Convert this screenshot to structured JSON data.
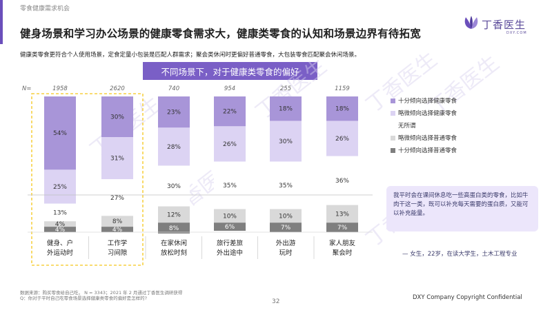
{
  "header": {
    "section_label": "零食健康需求机会",
    "title": "健身场景和学习办公场景的健康零食需求大，健康类零食的认知和场景边界有待拓宽",
    "subtitle": "健康类零食更符合个人使用场景，定食定量小包装是匹配人群需求；聚会类休闲时更偏好普通零食，大包装零食匹配聚会休闲场景。"
  },
  "logo": {
    "text": "丁香医生",
    "sub": "DXY.COM"
  },
  "watermark_text": "丁香医生",
  "colors": {
    "accent": "#6b4fbb",
    "header_bg": "#7a5fc6",
    "highlight_border": "#f5c518",
    "quote_bg": "#ece6fb"
  },
  "chart_data": {
    "type": "bar",
    "stacked": "percent",
    "title": "不同场景下，对于健康类零食的偏好",
    "n_label": "N=",
    "n_values": [
      "1958",
      "2620",
      "740",
      "954",
      "255",
      "1159"
    ],
    "categories": [
      "健身、户外运动时",
      "工作学习间隙",
      "在家休闲放松时刻",
      "旅行差旅外出途中",
      "外出游玩时",
      "家人朋友聚会时"
    ],
    "highlighted": [
      0,
      1
    ],
    "series": [
      {
        "name": "十分倾向选择健康零食",
        "color": "#a895d8",
        "values": [
          54,
          30,
          23,
          22,
          18,
          18
        ]
      },
      {
        "name": "略微倾向选择健康零食",
        "color": "#dcd3f3",
        "values": [
          25,
          31,
          28,
          26,
          30,
          26
        ]
      },
      {
        "name": "无所谓",
        "color": "#ffffff",
        "values": [
          13,
          27,
          30,
          35,
          35,
          36
        ]
      },
      {
        "name": "略微倾向选择普通零食",
        "color": "#d9d9d9",
        "values": [
          4,
          8,
          12,
          10,
          10,
          13
        ]
      },
      {
        "name": "十分倾向选择普通零食",
        "color": "#7f7f7f",
        "values": [
          4,
          4,
          8,
          6,
          7,
          7
        ]
      }
    ],
    "value_suffix": "%",
    "legend_position": "right"
  },
  "quote": {
    "text": "我平时会在课间休息吃一些高蛋白类的零食，比如牛肉干这一类，既可以补充每天需要的蛋白质，又能可以补充能量。",
    "author": "— 女生，22岁，在读大学生，土木工程专业"
  },
  "footer": {
    "source_line1": "数据来源：购买零食给自己吃， N = 3343；2021 年 2 月通过丁香医生调研获得",
    "source_line2": "Q：你对于平时自己吃零食场景选择健康类零食的偏好是怎样的?",
    "page_number": "32",
    "copyright": "DXY Company Copyright Confidential"
  }
}
